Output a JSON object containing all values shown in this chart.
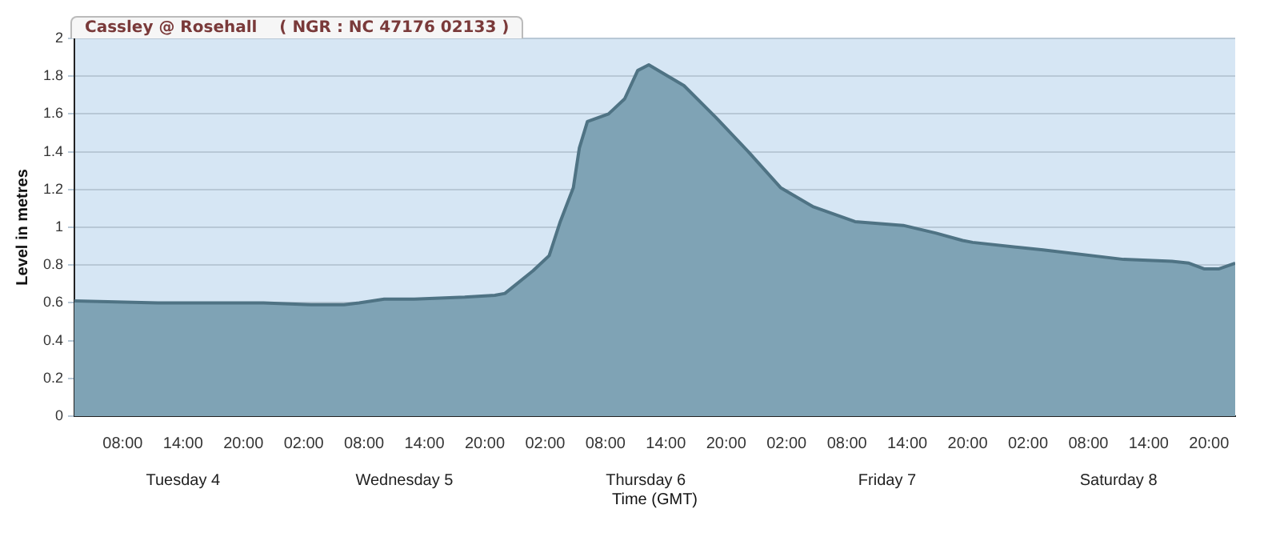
{
  "chart_data": {
    "type": "area",
    "title": "Cassley @ Rosehall    ( NGR : NC 47176 02133 )",
    "xlabel": "Time (GMT)",
    "ylabel": "Level in metres",
    "x": [
      "--12-04T03:12",
      "--12-04T11:30",
      "--12-04T22:00",
      "--12-05T02:42",
      "--12-05T06:00",
      "--12-05T07:30",
      "--12-05T10:00",
      "--12-05T13:00",
      "--12-05T18:00",
      "--12-05T21:00",
      "--12-05T22:00",
      "--12-06T00:48",
      "--12-06T02:24",
      "--12-06T03:30",
      "--12-06T04:48",
      "--12-06T05:24",
      "--12-06T06:12",
      "--12-06T08:18",
      "--12-06T09:54",
      "--12-06T11:12",
      "--12-06T12:18",
      "--12-06T15:48",
      "--12-06T19:00",
      "--12-06T22:12",
      "--12-07T01:24",
      "--12-07T04:36",
      "--12-07T08:48",
      "--12-07T13:36",
      "--12-07T16:48",
      "--12-07T19:30",
      "--12-07T20:30",
      "--12-08T03:30",
      "--12-08T11:30",
      "--12-08T16:18",
      "--12-08T18:00",
      "--12-08T19:30",
      "--12-08T21:00",
      "--12-08T22:36"
    ],
    "series": [
      {
        "color": "#7fa3b5",
        "values": [
          0.61,
          0.6,
          0.6,
          0.59,
          0.59,
          0.6,
          0.62,
          0.62,
          0.63,
          0.64,
          0.65,
          0.77,
          0.85,
          1.03,
          1.21,
          1.42,
          1.56,
          1.6,
          1.68,
          1.83,
          1.86,
          1.75,
          1.58,
          1.4,
          1.21,
          1.11,
          1.03,
          1.01,
          0.97,
          0.93,
          0.92,
          0.88,
          0.83,
          0.82,
          0.81,
          0.78,
          0.78,
          0.81
        ]
      }
    ],
    "xlim": [
      "--12-04T03:12",
      "--12-08T22:36"
    ],
    "xticks": [
      {
        "value": "--12-04T08:00",
        "label": "08:00"
      },
      {
        "value": "--12-04T14:00",
        "label": "14:00"
      },
      {
        "value": "--12-04T20:00",
        "label": "20:00"
      },
      {
        "value": "--12-05T02:00",
        "label": "02:00"
      },
      {
        "value": "--12-05T08:00",
        "label": "08:00"
      },
      {
        "value": "--12-05T14:00",
        "label": "14:00"
      },
      {
        "value": "--12-05T20:00",
        "label": "20:00"
      },
      {
        "value": "--12-06T02:00",
        "label": "02:00"
      },
      {
        "value": "--12-06T08:00",
        "label": "08:00"
      },
      {
        "value": "--12-06T14:00",
        "label": "14:00"
      },
      {
        "value": "--12-06T20:00",
        "label": "20:00"
      },
      {
        "value": "--12-07T02:00",
        "label": "02:00"
      },
      {
        "value": "--12-07T08:00",
        "label": "08:00"
      },
      {
        "value": "--12-07T14:00",
        "label": "14:00"
      },
      {
        "value": "--12-07T20:00",
        "label": "20:00"
      },
      {
        "value": "--12-08T02:00",
        "label": "02:00"
      },
      {
        "value": "--12-08T08:00",
        "label": "08:00"
      },
      {
        "value": "--12-08T14:00",
        "label": "14:00"
      },
      {
        "value": "--12-08T20:00",
        "label": "20:00"
      }
    ],
    "x2lim": [
      "--12-04T03:12",
      "--12-08T22:36"
    ],
    "x2ticks": [
      {
        "value": "--12-04T14:00",
        "label": "Tuesday 4"
      },
      {
        "value": "--12-05T12:00",
        "label": "Wednesday 5"
      },
      {
        "value": "--12-06T12:00",
        "label": "Thursday 6"
      },
      {
        "value": "--12-07T12:00",
        "label": "Friday 7"
      },
      {
        "value": "--12-08T11:00",
        "label": "Saturday 8"
      }
    ],
    "ylim": [
      0,
      2
    ],
    "yticks": [
      0,
      0.2,
      0.4,
      0.6,
      0.8,
      1,
      1.2,
      1.4,
      1.6,
      1.8,
      2
    ],
    "grid": "y",
    "legend": false,
    "marker": "none",
    "line_style": "solid"
  }
}
